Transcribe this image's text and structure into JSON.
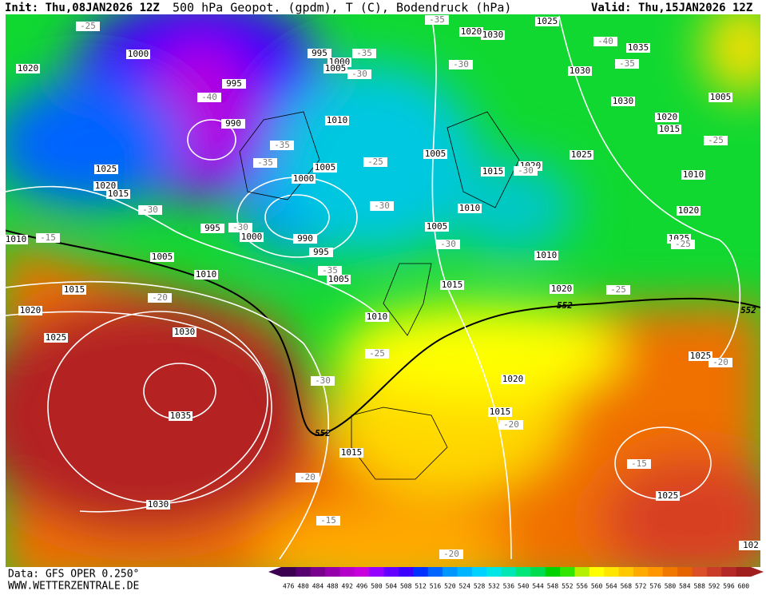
{
  "header": {
    "init": "Init: Thu,08JAN2026 12Z",
    "title": "500 hPa Geopot. (gpdm), T (C), Bodendruck (hPa)",
    "valid": "Valid: Thu,15JAN2026 12Z"
  },
  "footer": {
    "data_source": "Data: GFS OPER 0.250°",
    "website": "WWW.WETTERZENTRALE.DE"
  },
  "isobar_labels": [
    "1000",
    "1020",
    "995",
    "990",
    "995",
    "1000",
    "1005",
    "1010",
    "1005",
    "1000",
    "1025",
    "1020",
    "1015",
    "995",
    "1000",
    "990",
    "995",
    "1005",
    "1010",
    "1010",
    "1005",
    "1015",
    "1020",
    "1025",
    "1030",
    "1035",
    "1030",
    "1010",
    "1015",
    "1005",
    "1010",
    "1015",
    "1020",
    "1005",
    "1010",
    "1020",
    "1025",
    "1030",
    "1030",
    "1030",
    "1025",
    "1035",
    "1020",
    "1015",
    "1005",
    "1010",
    "1020",
    "1025",
    "1025",
    "1020",
    "1015",
    "1015",
    "1025",
    "102",
    "1020"
  ],
  "temperature_labels": [
    "-25",
    "-35",
    "-35",
    "-30",
    "-30",
    "-35",
    "-40",
    "-40",
    "-35",
    "-35",
    "-25",
    "-30",
    "-25",
    "-30",
    "-30",
    "-30",
    "-30",
    "-15",
    "-35",
    "-20",
    "-25",
    "-30",
    "-25",
    "-25",
    "-20",
    "-20",
    "-15",
    "-20",
    "-15",
    "-20"
  ],
  "height_labels": [
    "552",
    "552",
    "552"
  ],
  "colorbar": {
    "labels": [
      476,
      480,
      484,
      488,
      492,
      496,
      500,
      504,
      508,
      512,
      516,
      520,
      524,
      528,
      532,
      536,
      540,
      544,
      548,
      552,
      556,
      560,
      564,
      568,
      572,
      576,
      580,
      584,
      588,
      592,
      596,
      600
    ],
    "colors": [
      "#3c0050",
      "#55006e",
      "#78008c",
      "#9600aa",
      "#b400c8",
      "#c800dc",
      "#9600ff",
      "#6400ff",
      "#3c00ff",
      "#0032ff",
      "#0064ff",
      "#0096ff",
      "#00b4ff",
      "#00d2ff",
      "#00e6e6",
      "#00e6b4",
      "#00e678",
      "#00dc50",
      "#00d200",
      "#32e600",
      "#b4f000",
      "#ffff00",
      "#ffe600",
      "#ffc800",
      "#ffaa00",
      "#ff9600",
      "#f07800",
      "#e66400",
      "#dc5028",
      "#c83c28",
      "#b42828",
      "#a01e1e"
    ]
  }
}
